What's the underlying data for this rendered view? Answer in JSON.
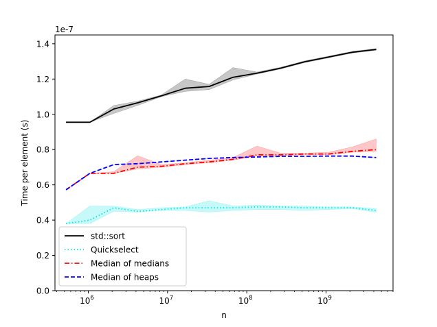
{
  "chart_data": {
    "type": "line",
    "title": "",
    "xlabel": "n",
    "ylabel": "Time per element (s)",
    "y_scale_label": "1e-7",
    "x_scale": "log",
    "xlim": [
      380000,
      7000000000
    ],
    "ylim": [
      0.0,
      1.45
    ],
    "x_ticks": [
      {
        "value": 1000000,
        "base": "10",
        "exp": "6"
      },
      {
        "value": 10000000,
        "base": "10",
        "exp": "7"
      },
      {
        "value": 100000000,
        "base": "10",
        "exp": "8"
      },
      {
        "value": 1000000000,
        "base": "10",
        "exp": "9"
      }
    ],
    "y_ticks": [
      {
        "value": 0.0,
        "label": "0.0"
      },
      {
        "value": 0.2,
        "label": "0.2"
      },
      {
        "value": 0.4,
        "label": "0.4"
      },
      {
        "value": 0.6,
        "label": "0.6"
      },
      {
        "value": 0.8,
        "label": "0.8"
      },
      {
        "value": 1.0,
        "label": "1.0"
      },
      {
        "value": 1.2,
        "label": "1.2"
      },
      {
        "value": 1.4,
        "label": "1.4"
      }
    ],
    "x": [
      524288,
      1048576,
      2097152,
      4194304,
      8388608,
      16777216,
      33554432,
      67108864,
      134217728,
      268435456,
      536870912,
      1073741824,
      2147483648,
      4294967296
    ],
    "legend_position": "lower-left",
    "series": [
      {
        "name": "std::sort",
        "color": "#000000",
        "style": "solid",
        "values": [
          0.955,
          0.955,
          1.03,
          1.065,
          1.105,
          1.148,
          1.158,
          1.21,
          1.233,
          1.262,
          1.298,
          1.325,
          1.352,
          1.368
        ],
        "lower": [
          0.955,
          0.955,
          1.005,
          1.05,
          1.1,
          1.13,
          1.14,
          1.195,
          1.228,
          1.257,
          1.293,
          1.32,
          1.347,
          1.363
        ],
        "upper": [
          0.955,
          0.955,
          1.05,
          1.075,
          1.11,
          1.2,
          1.17,
          1.265,
          1.24,
          1.267,
          1.303,
          1.33,
          1.357,
          1.373
        ]
      },
      {
        "name": "Quickselect",
        "color": "#00e5e5",
        "style": "dotted",
        "values": [
          0.38,
          0.4,
          0.47,
          0.45,
          0.46,
          0.47,
          0.47,
          0.47,
          0.475,
          0.475,
          0.47,
          0.47,
          0.47,
          0.455
        ],
        "lower": [
          0.38,
          0.38,
          0.45,
          0.445,
          0.455,
          0.455,
          0.445,
          0.455,
          0.46,
          0.46,
          0.455,
          0.46,
          0.465,
          0.445
        ],
        "upper": [
          0.38,
          0.48,
          0.48,
          0.46,
          0.47,
          0.475,
          0.51,
          0.48,
          0.485,
          0.48,
          0.48,
          0.475,
          0.475,
          0.465
        ]
      },
      {
        "name": "Median of medians",
        "color": "#ff0000",
        "style": "dashdot",
        "values": [
          0.572,
          0.665,
          0.665,
          0.7,
          0.705,
          0.72,
          0.73,
          0.745,
          0.77,
          0.77,
          0.775,
          0.775,
          0.79,
          0.8
        ],
        "lower": [
          0.572,
          0.665,
          0.665,
          0.69,
          0.7,
          0.715,
          0.725,
          0.74,
          0.765,
          0.765,
          0.77,
          0.77,
          0.785,
          0.79
        ],
        "upper": [
          0.572,
          0.665,
          0.675,
          0.765,
          0.715,
          0.725,
          0.74,
          0.755,
          0.82,
          0.78,
          0.78,
          0.785,
          0.815,
          0.86
        ]
      },
      {
        "name": "Median of heaps",
        "color": "#0000ff",
        "style": "dashed",
        "values": [
          0.572,
          0.665,
          0.715,
          0.72,
          0.73,
          0.74,
          0.75,
          0.755,
          0.758,
          0.762,
          0.762,
          0.763,
          0.763,
          0.755
        ],
        "lower": [
          0.572,
          0.665,
          0.715,
          0.72,
          0.73,
          0.74,
          0.75,
          0.755,
          0.758,
          0.762,
          0.762,
          0.763,
          0.763,
          0.755
        ],
        "upper": [
          0.572,
          0.665,
          0.715,
          0.72,
          0.73,
          0.74,
          0.75,
          0.755,
          0.758,
          0.762,
          0.762,
          0.763,
          0.763,
          0.755
        ]
      }
    ]
  }
}
